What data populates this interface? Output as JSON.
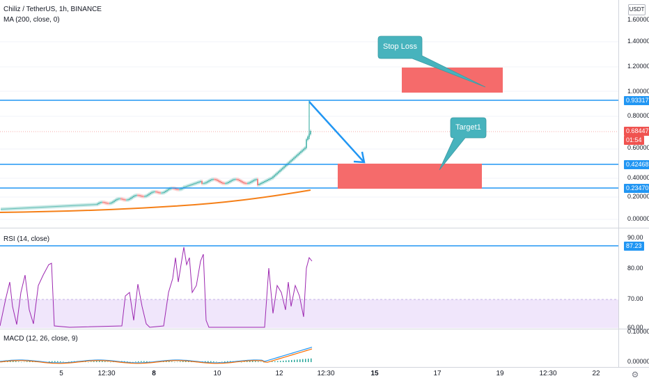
{
  "header": {
    "symbol_title": "Chiliz / TetherUS, 1h, BINANCE",
    "ma_indicator": "MA (200, close, 0)",
    "currency_button": "USDT"
  },
  "price_scale": [
    "1.60000",
    "1.40000",
    "1.20000",
    "1.00000",
    "0.80000",
    "0.60000",
    "0.40000",
    "0.20000",
    "0.00000"
  ],
  "price_tags": {
    "level_high": "0.93317",
    "current_price": "0.68447",
    "countdown": "01:54",
    "level_mid": "0.42468",
    "level_low": "0.23470"
  },
  "annotations": {
    "stop_loss": "Stop Loss",
    "target": "Target1"
  },
  "rsi": {
    "label": "RSI (14, close)",
    "scale": [
      "90.00",
      "80.00",
      "70.00",
      "60.00"
    ],
    "level_tag": "87.23"
  },
  "macd": {
    "label": "MACD (12, 26, close, 9)",
    "scale": [
      "0.10000",
      "0.00000"
    ]
  },
  "time_axis": [
    "5",
    "12:30",
    "8",
    "10",
    "12",
    "12:30",
    "15",
    "17",
    "19",
    "12:30",
    "22"
  ],
  "colors": {
    "horizontal_line": "#2196f3",
    "zone_fill": "#f56b6b",
    "callout_fill": "#47b3bd",
    "ma_line": "#f57f17",
    "rsi_line": "#9c27b0",
    "rsi_band": "#f0e6fb",
    "macd_line": "#2196f3",
    "signal_line": "#ff6d00",
    "current_price_tag": "#f05350"
  }
}
